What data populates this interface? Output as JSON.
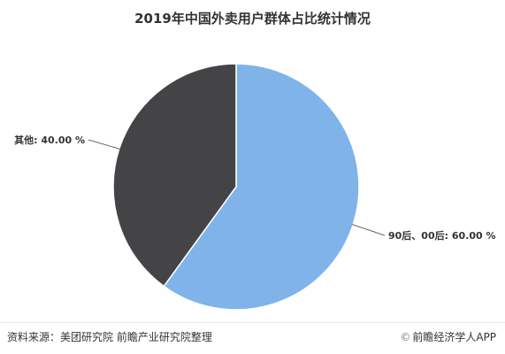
{
  "chart_data": {
    "type": "pie",
    "title": "2019年中国外卖用户群体占比统计情况",
    "slices": [
      {
        "label": "90后、00后",
        "value": 60.0,
        "display": "90后、00后: 60.00 %",
        "color": "#7fb3ea"
      },
      {
        "label": "其他",
        "value": 40.0,
        "display": "其他: 40.00 %",
        "color": "#444447"
      }
    ],
    "start_angle_deg": 0,
    "direction": "clockwise"
  },
  "footer": {
    "source": "资料来源：美团研究院 前瞻产业研究院整理",
    "brand_icon": "©",
    "brand": "前瞻经济学人APP"
  }
}
